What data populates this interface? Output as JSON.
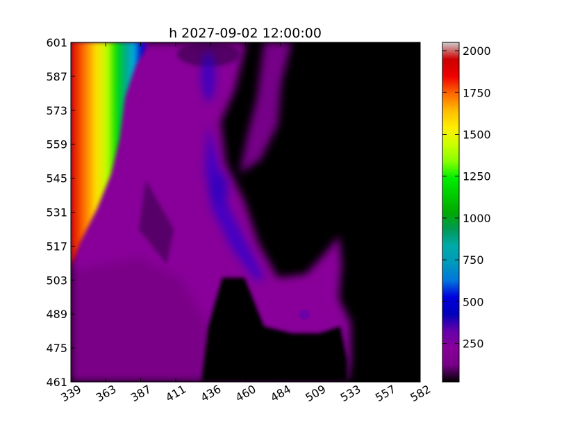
{
  "chart_data": {
    "type": "heatmap",
    "title": "h 2027-09-02 12:00:00",
    "xlabel": "",
    "ylabel": "",
    "x_ticks": [
      "339",
      "363",
      "387",
      "411",
      "436",
      "460",
      "484",
      "509",
      "533",
      "557",
      "582"
    ],
    "y_ticks": [
      "601",
      "587",
      "573",
      "559",
      "545",
      "531",
      "517",
      "503",
      "489",
      "475",
      "461"
    ],
    "xlim": [
      339,
      582
    ],
    "ylim": [
      461,
      601
    ],
    "colorbar": {
      "ticks": [
        "2000",
        "1750",
        "1500",
        "1250",
        "1000",
        "750",
        "500",
        "250"
      ],
      "tick_values": [
        2000,
        1750,
        1500,
        1250,
        1000,
        750,
        500,
        250
      ],
      "range": [
        20,
        2050
      ],
      "colormap": "nipy_spectral"
    },
    "background_value": 0,
    "field_features": [
      {
        "feature": "high ridge along left edge",
        "value_max": 2000,
        "x_range": [
          339,
          360
        ],
        "y_range": [
          575,
          601
        ]
      },
      {
        "feature": "gradient band from green to blue",
        "value_range": [
          400,
          1200
        ],
        "x_range": [
          339,
          395
        ],
        "y_range": [
          510,
          601
        ]
      },
      {
        "feature": "purple plateau",
        "value_range": [
          180,
          300
        ],
        "x_range": [
          339,
          500
        ],
        "y_range": [
          461,
          540
        ]
      },
      {
        "feature": "blue channel",
        "value_range": [
          350,
          450
        ],
        "x_range": [
          430,
          475
        ],
        "y_range": [
          505,
          545
        ]
      },
      {
        "feature": "dark region (low values)",
        "value_range": [
          0,
          30
        ],
        "x_range": [
          440,
          582
        ],
        "y_range": [
          461,
          601
        ]
      }
    ]
  }
}
